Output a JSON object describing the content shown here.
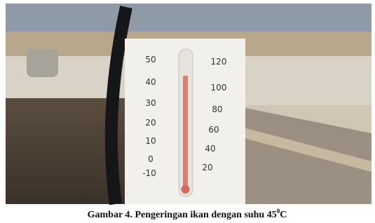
{
  "thermometer": {
    "celsius": [
      "50",
      "40",
      "30",
      "20",
      "10",
      "0",
      "-10"
    ],
    "fahrenheit": [
      "120",
      "100",
      "80",
      "60",
      "40",
      "20"
    ]
  },
  "caption": {
    "label": "Gambar 4.",
    "text": "Pengeringan ikan dengan suhu 45",
    "sup": "0",
    "unit": "C"
  }
}
